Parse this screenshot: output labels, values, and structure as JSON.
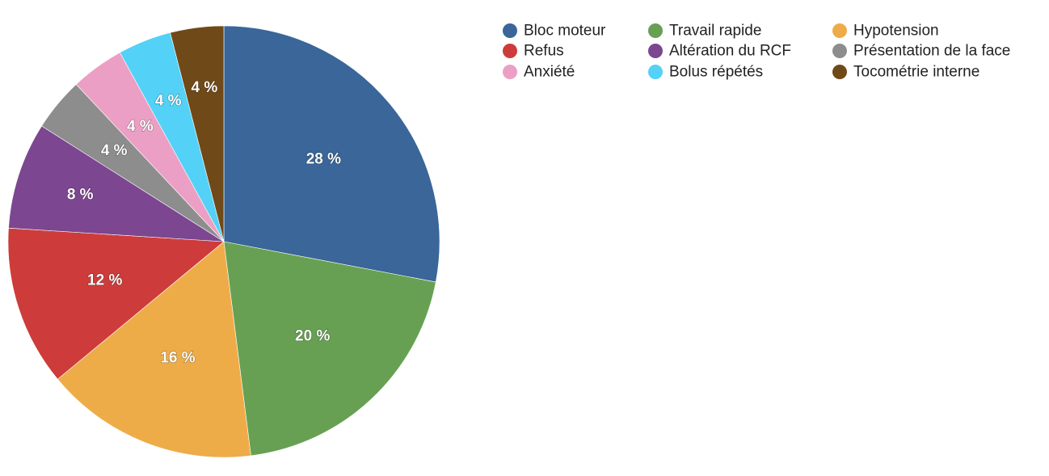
{
  "chart_data": {
    "type": "pie",
    "slices": [
      {
        "name": "Bloc moteur",
        "value": 28,
        "label": "28 %",
        "color": "#3a6699"
      },
      {
        "name": "Travail rapide",
        "value": 20,
        "label": "20 %",
        "color": "#67a052"
      },
      {
        "name": "Hypotension",
        "value": 16,
        "label": "16 %",
        "color": "#eeac48"
      },
      {
        "name": "Refus",
        "value": 12,
        "label": "12 %",
        "color": "#cd3c3a"
      },
      {
        "name": "Altération du RCF",
        "value": 8,
        "label": "8 %",
        "color": "#7c4690"
      },
      {
        "name": "Présentation de la face",
        "value": 4,
        "label": "4 %",
        "color": "#8d8d8d"
      },
      {
        "name": "Anxiété",
        "value": 4,
        "label": "4 %",
        "color": "#ec9fc4"
      },
      {
        "name": "Bolus répétés",
        "value": 4,
        "label": "4 %",
        "color": "#53d1f6"
      },
      {
        "name": "Tocométrie interne",
        "value": 4,
        "label": "4 %",
        "color": "#704918"
      }
    ],
    "start": "12 o'clock",
    "direction": "clockwise",
    "legend_position": "top-right",
    "legend_order": [
      "Bloc moteur",
      "Travail rapide",
      "Hypotension",
      "Refus",
      "Altération du RCF",
      "Présentation de la face",
      "Anxiété",
      "Bolus répétés",
      "Tocométrie interne"
    ]
  }
}
